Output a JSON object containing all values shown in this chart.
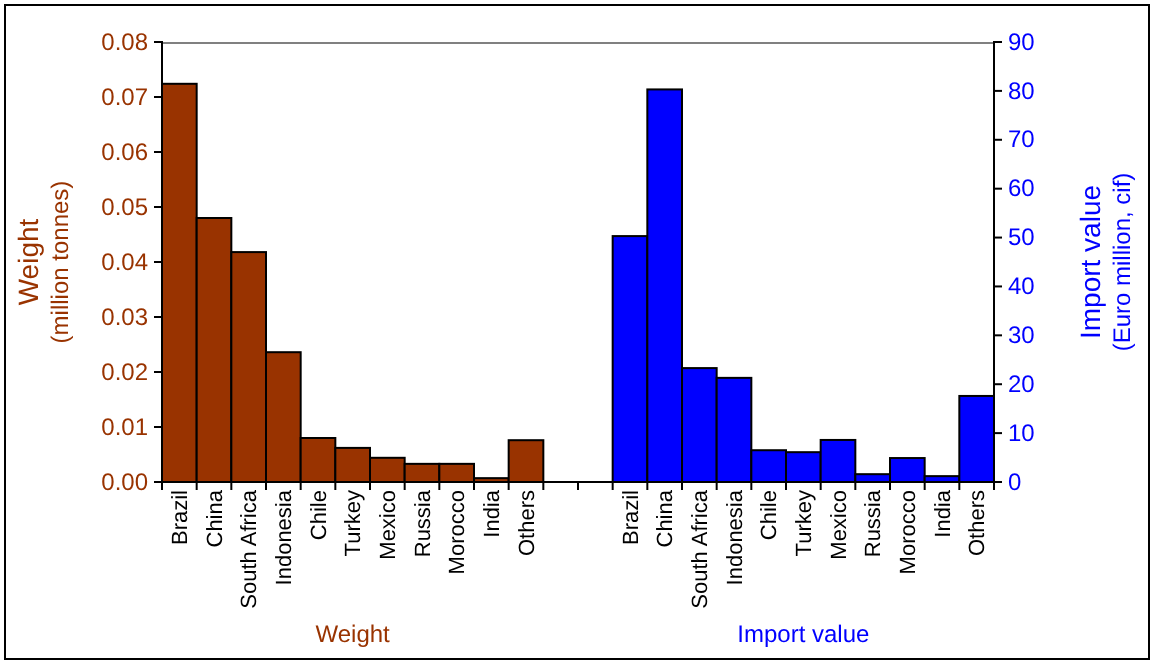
{
  "chart_data": {
    "type": "bar",
    "ylabel": "Weight\n(million tonnes)",
    "y2label": "Import value\n(Euro million, cif)",
    "categories": [
      "Brazil",
      "China",
      "South Africa",
      "Indonesia",
      "Chile",
      "Turkey",
      "Mexico",
      "Russia",
      "Morocco",
      "India",
      "Others",
      null,
      null,
      "Brazil",
      "China",
      "South Africa",
      "Indonesia",
      "Chile",
      "Turkey",
      "Mexico",
      "Russia",
      "Morocco",
      "India",
      "Others"
    ],
    "series": [
      {
        "color": "#993300",
        "values": [
          0.0724,
          0.048,
          0.0418,
          0.0236,
          0.008,
          0.0062,
          0.0044,
          0.0033,
          0.0033,
          0.0007,
          0.0076,
          null,
          null,
          null,
          null,
          null,
          null,
          null,
          null,
          null,
          null,
          null,
          null,
          null
        ]
      },
      {
        "color": "#0000ff",
        "axis": "y2",
        "values": [
          null,
          null,
          null,
          null,
          null,
          null,
          null,
          null,
          null,
          null,
          null,
          null,
          null,
          50.3,
          80.3,
          23.3,
          21.3,
          6.5,
          6.1,
          8.6,
          1.6,
          4.9,
          1.2,
          17.6
        ]
      }
    ],
    "ylim": [
      0,
      0.08
    ],
    "yticks": [
      {
        "value": 0,
        "label": "0.00"
      },
      0.01,
      0.02,
      0.03,
      0.04,
      0.05,
      0.06,
      0.07,
      0.08
    ],
    "y2lim": [
      0,
      90
    ],
    "y2ticks": [
      0,
      10,
      20,
      30,
      40,
      50,
      60,
      70,
      80,
      90
    ],
    "grid": false,
    "annotations": [
      "Weight",
      "Import value"
    ]
  }
}
